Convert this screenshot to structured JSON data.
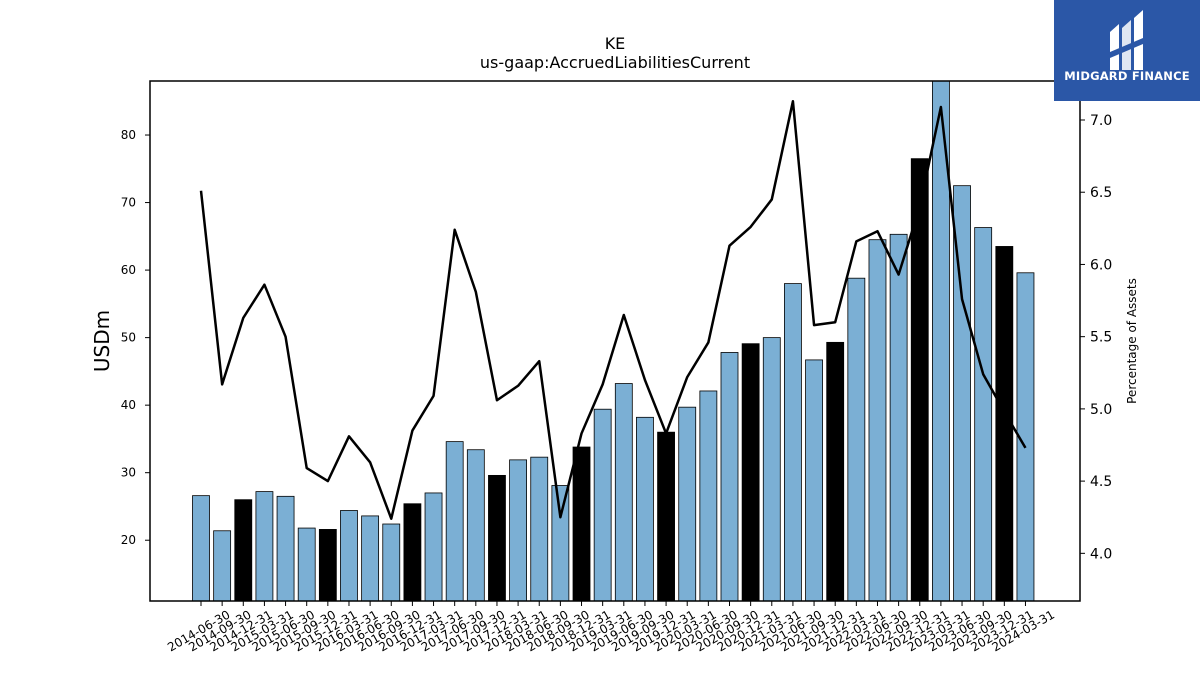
{
  "logo": {
    "text": "MIDGARD FINANCE",
    "icon": "midgard-logo-icon",
    "background": "#2b57a7"
  },
  "chart_data": {
    "type": "bar",
    "title": "KE",
    "subtitle": "us-gaap:AccruedLiabilitiesCurrent",
    "ylabel": "USDm",
    "y2label": "Percentage of Assets",
    "ylim": [
      11,
      88
    ],
    "y2lim": [
      3.67,
      7.27
    ],
    "yticks": [
      20,
      30,
      40,
      50,
      60,
      70,
      80
    ],
    "y2ticks": [
      4.0,
      4.5,
      5.0,
      5.5,
      6.0,
      6.5,
      7.0
    ],
    "grid": false,
    "categories": [
      "2014-06-30",
      "2014-09-30",
      "2014-12-31",
      "2015-03-31",
      "2015-06-30",
      "2015-09-30",
      "2015-12-31",
      "2016-03-31",
      "2016-06-30",
      "2016-09-30",
      "2016-12-31",
      "2017-03-31",
      "2017-06-30",
      "2017-09-30",
      "2017-12-31",
      "2018-03-31",
      "2018-06-30",
      "2018-09-30",
      "2018-12-31",
      "2019-03-31",
      "2019-06-30",
      "2019-09-30",
      "2019-12-31",
      "2020-03-31",
      "2020-06-30",
      "2020-09-30",
      "2020-12-31",
      "2021-03-31",
      "2021-06-30",
      "2021-09-30",
      "2021-12-31",
      "2022-03-31",
      "2022-06-30",
      "2022-09-30",
      "2022-12-31",
      "2023-03-31",
      "2023-06-30",
      "2023-09-30",
      "2023-12-31",
      "2024-03-31"
    ],
    "series": [
      {
        "type": "bar",
        "values": [
          26.6,
          21.4,
          26.0,
          27.2,
          26.5,
          21.8,
          21.6,
          24.4,
          23.6,
          22.4,
          25.4,
          27.0,
          34.6,
          33.4,
          29.6,
          31.9,
          32.3,
          28.1,
          33.8,
          39.4,
          43.2,
          38.2,
          36.0,
          39.7,
          42.1,
          47.8,
          49.1,
          50.0,
          58.0,
          46.7,
          49.3,
          58.8,
          64.5,
          65.3,
          76.5,
          88.0,
          72.5,
          66.3,
          63.5,
          59.6
        ],
        "highlight": [
          false,
          false,
          true,
          false,
          false,
          false,
          true,
          false,
          false,
          false,
          true,
          false,
          false,
          false,
          true,
          false,
          false,
          false,
          true,
          false,
          false,
          false,
          true,
          false,
          false,
          false,
          true,
          false,
          false,
          false,
          true,
          false,
          false,
          false,
          true,
          false,
          false,
          false,
          true,
          false
        ],
        "color": "#7bafd4",
        "highlight_color": "#000000"
      },
      {
        "type": "line",
        "axis": "right",
        "values": [
          6.51,
          5.17,
          5.63,
          5.86,
          5.5,
          4.59,
          4.5,
          4.81,
          4.63,
          4.24,
          4.85,
          5.09,
          6.24,
          5.81,
          5.06,
          5.16,
          5.33,
          4.25,
          4.83,
          5.17,
          5.65,
          5.2,
          4.83,
          5.22,
          5.46,
          6.13,
          6.26,
          6.45,
          7.13,
          5.58,
          5.6,
          6.16,
          6.23,
          5.93,
          6.4,
          7.09,
          5.76,
          5.24,
          4.98,
          4.73
        ],
        "color": "#000000"
      }
    ]
  }
}
